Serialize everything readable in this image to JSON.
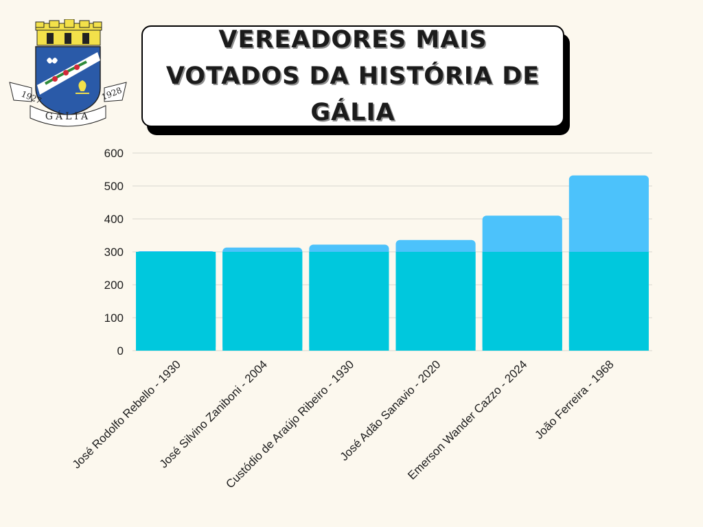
{
  "header": {
    "title": "VEREADORES MAIS VOTADOS DA HISTÓRIA DE GÁLIA"
  },
  "logo": {
    "name": "GÁLIA",
    "year_left": "1927",
    "year_right": "1928"
  },
  "colors": {
    "background": "#fcf8ee",
    "bar_base": "#00c8dd",
    "bar_top": "#4cc2fb",
    "gridline": "#d9d6cf"
  },
  "chart_data": {
    "type": "bar",
    "title": "VEREADORES MAIS VOTADOS DA HISTÓRIA DE GÁLIA",
    "xlabel": "",
    "ylabel": "",
    "categories": [
      "José Rodolfo Rebello - 1930",
      "José Silvino Zaniboni - 2004",
      "Custódio de Araújo Ribeiro - 1930",
      "José Adão Sanavio - 2020",
      "Emerson Wander Cazzo - 2024",
      "João Ferreira - 1968"
    ],
    "values": [
      302,
      313,
      322,
      336,
      410,
      532
    ],
    "yticks": [
      0,
      100,
      200,
      300,
      400,
      500,
      600
    ],
    "ylim": [
      0,
      600
    ],
    "grid": true,
    "legend": "none"
  }
}
